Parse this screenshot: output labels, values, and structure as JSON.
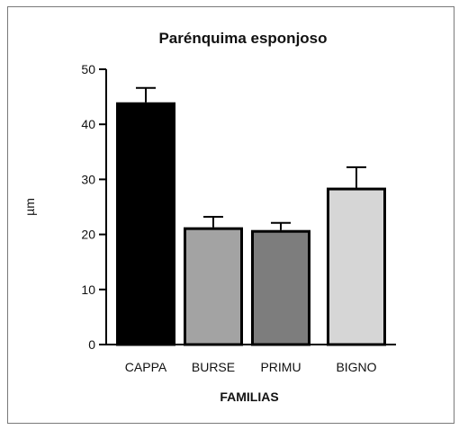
{
  "chart_data": {
    "type": "bar",
    "title": "Parénquima esponjoso",
    "xlabel": "FAMILIAS",
    "ylabel": "µm",
    "ylim": [
      0,
      50
    ],
    "yticks": [
      0,
      10,
      20,
      30,
      40,
      50
    ],
    "categories": [
      "CAPPA",
      "BURSE",
      "PRIMU",
      "BIGNO"
    ],
    "values": [
      44,
      21.3,
      20.8,
      28.5
    ],
    "errors": [
      2.6,
      1.9,
      1.3,
      3.7
    ],
    "colors": [
      "#000000",
      "#a3a3a3",
      "#7d7d7d",
      "#d6d6d6"
    ],
    "grid": false,
    "legend": "none"
  }
}
